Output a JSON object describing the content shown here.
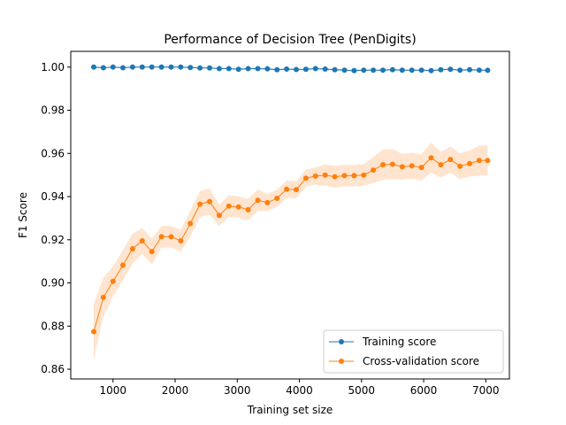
{
  "chart_data": {
    "type": "line",
    "title": "Performance of Decision Tree (PenDigits)",
    "xlabel": "Training set size",
    "ylabel": "F1 Score",
    "xlim": [
      320,
      7380
    ],
    "ylim": [
      0.8555,
      1.0073
    ],
    "xticks": [
      1000,
      2000,
      3000,
      4000,
      5000,
      6000,
      7000
    ],
    "yticks": [
      0.86,
      0.88,
      0.9,
      0.92,
      0.94,
      0.96,
      0.98,
      1.0
    ],
    "grid": false,
    "legend_position": "lower-right",
    "x": [
      690,
      845,
      1000,
      1160,
      1315,
      1470,
      1625,
      1780,
      1935,
      2090,
      2245,
      2400,
      2555,
      2710,
      2865,
      3020,
      3175,
      3330,
      3485,
      3640,
      3795,
      3950,
      4105,
      4260,
      4415,
      4570,
      4725,
      4880,
      5035,
      5190,
      5345,
      5500,
      5655,
      5810,
      5965,
      6120,
      6275,
      6430,
      6585,
      6740,
      6895,
      7030
    ],
    "series": [
      {
        "name": "Training score",
        "color": "#1f77b4",
        "values": [
          1.0,
          0.9997,
          1.0,
          0.9997,
          1.0,
          1.0,
          1.0,
          1.0,
          1.0,
          1.0,
          0.9998,
          0.9996,
          0.9996,
          0.9993,
          0.9993,
          0.999,
          0.9993,
          0.9993,
          0.9992,
          0.9988,
          0.9991,
          0.9989,
          0.999,
          0.9993,
          0.9991,
          0.9988,
          0.9986,
          0.9984,
          0.9986,
          0.9986,
          0.9986,
          0.9988,
          0.9986,
          0.9986,
          0.9986,
          0.9984,
          0.9988,
          0.999,
          0.9986,
          0.9988,
          0.9986,
          0.9985
        ],
        "band": [
          0.0003,
          0.0003,
          0.0003,
          0.0003,
          0.0003,
          0.0003,
          0.0003,
          0.0003,
          0.0003,
          0.0003,
          0.0003,
          0.0003,
          0.0003,
          0.0003,
          0.0003,
          0.0004,
          0.0004,
          0.0004,
          0.0004,
          0.0004,
          0.0004,
          0.0004,
          0.0004,
          0.0004,
          0.0004,
          0.0004,
          0.0004,
          0.0004,
          0.0004,
          0.0004,
          0.0004,
          0.0004,
          0.0004,
          0.0004,
          0.0004,
          0.0004,
          0.0004,
          0.0004,
          0.0004,
          0.0004,
          0.0004,
          0.0004
        ]
      },
      {
        "name": "Cross-validation score",
        "color": "#ff7f0e",
        "values": [
          0.8774,
          0.8933,
          0.9007,
          0.9082,
          0.9158,
          0.9195,
          0.9145,
          0.9214,
          0.9214,
          0.9195,
          0.9275,
          0.9365,
          0.9377,
          0.9313,
          0.9356,
          0.9352,
          0.9339,
          0.9383,
          0.9372,
          0.9392,
          0.9434,
          0.9432,
          0.9485,
          0.9495,
          0.95,
          0.9492,
          0.9497,
          0.9497,
          0.95,
          0.9523,
          0.9548,
          0.955,
          0.9538,
          0.9543,
          0.9535,
          0.958,
          0.9548,
          0.9572,
          0.9541,
          0.9553,
          0.9567,
          0.9567
        ],
        "band": [
          0.013,
          0.009,
          0.007,
          0.007,
          0.007,
          0.006,
          0.006,
          0.005,
          0.005,
          0.005,
          0.006,
          0.006,
          0.006,
          0.005,
          0.005,
          0.005,
          0.005,
          0.005,
          0.004,
          0.004,
          0.004,
          0.004,
          0.004,
          0.004,
          0.005,
          0.005,
          0.005,
          0.005,
          0.005,
          0.006,
          0.007,
          0.007,
          0.006,
          0.006,
          0.006,
          0.007,
          0.006,
          0.006,
          0.006,
          0.006,
          0.007,
          0.007
        ]
      }
    ]
  }
}
